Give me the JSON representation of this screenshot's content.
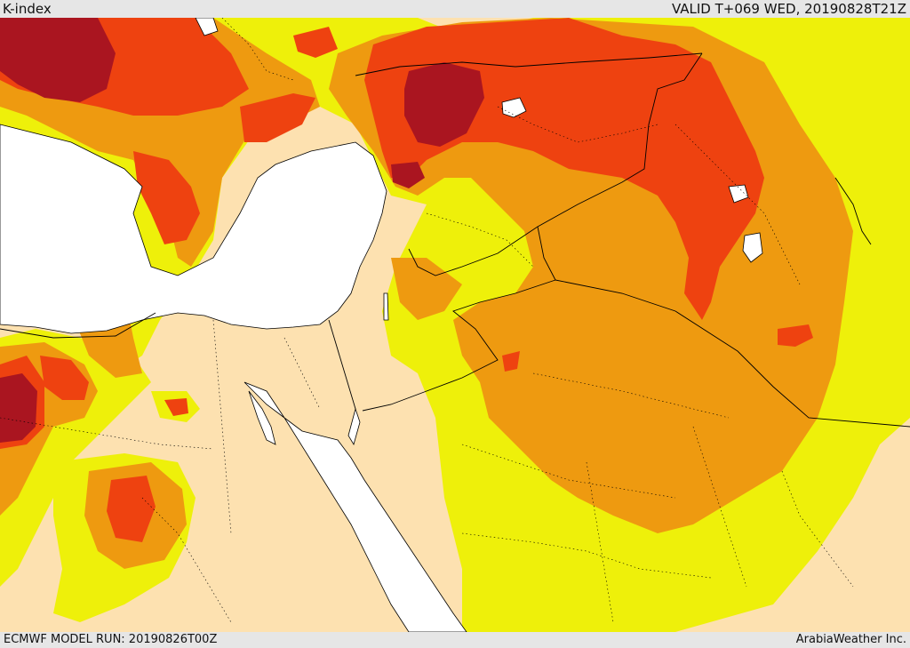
{
  "header": {
    "title": "K-index",
    "valid": "VALID T+069 WED, 20190828T21Z"
  },
  "footer": {
    "model_run": "ECMWF MODEL RUN: 20190826T00Z",
    "credit": "ArabiaWeather Inc."
  },
  "colors": {
    "sea": "#ffffff",
    "land": "#fde1b0",
    "k_low": "#eef00a",
    "k_mid": "#ee9a10",
    "k_high": "#ee4210",
    "k_very_high": "#aa1520",
    "borders": "#000000"
  }
}
